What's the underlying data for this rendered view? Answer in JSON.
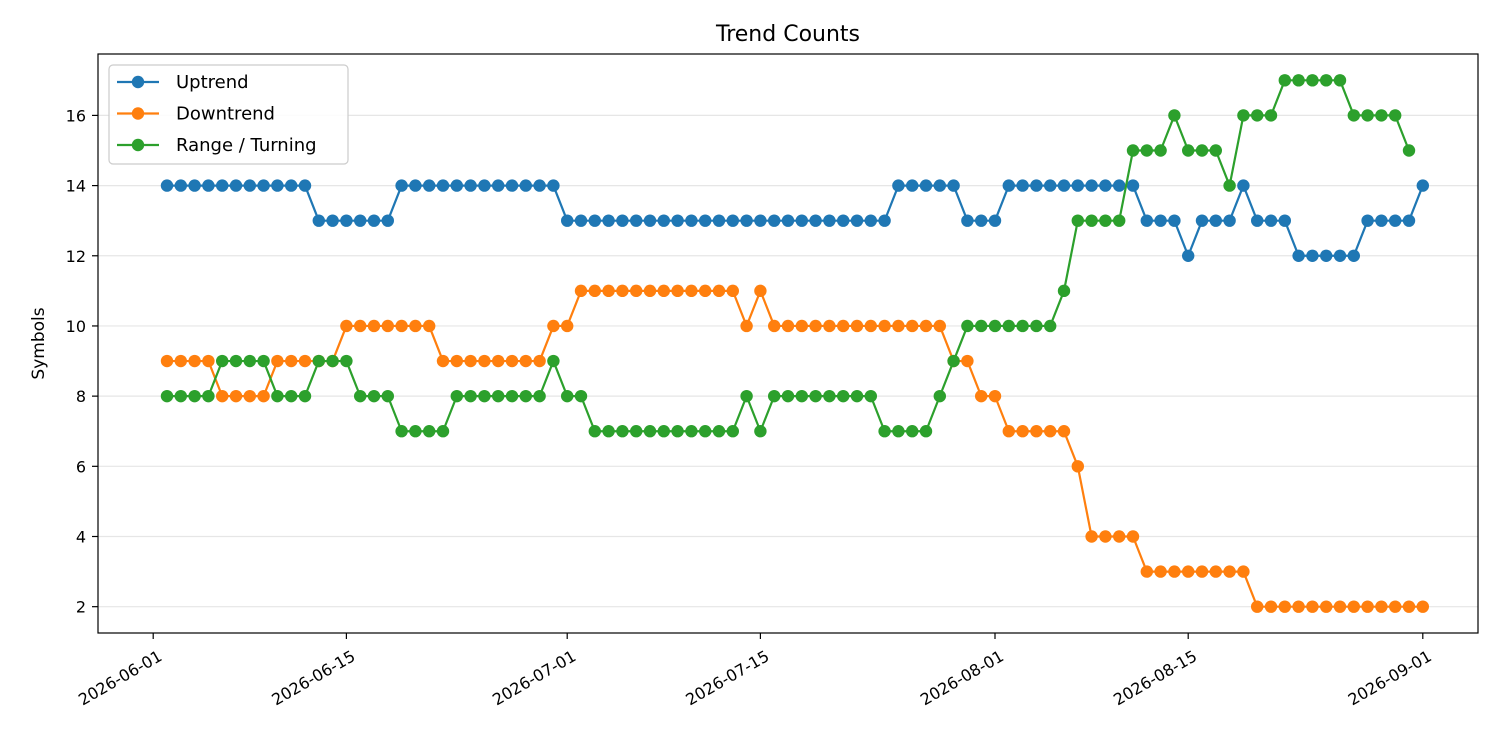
{
  "chart_data": {
    "type": "line",
    "title": "Trend Counts",
    "xlabel": "",
    "ylabel": "Symbols",
    "x_start": "2026-06-02",
    "x_end": "2026-08-31",
    "xlim": [
      "2026-05-28",
      "2026-09-05"
    ],
    "ylim": [
      1.25,
      17.75
    ],
    "x_ticks": [
      "2026-06-01",
      "2026-06-15",
      "2026-07-01",
      "2026-07-15",
      "2026-08-01",
      "2026-08-15",
      "2026-09-01"
    ],
    "y_ticks": [
      2,
      4,
      6,
      8,
      10,
      12,
      14,
      16
    ],
    "grid": "horizontal",
    "legend_position": "top-left",
    "series": [
      {
        "name": "Uptrend",
        "color": "#1f77b4",
        "values": [
          14,
          14,
          14,
          14,
          14,
          14,
          14,
          14,
          14,
          14,
          14,
          13,
          13,
          13,
          13,
          13,
          13,
          14,
          14,
          14,
          14,
          14,
          14,
          14,
          14,
          14,
          14,
          14,
          14,
          13,
          13,
          13,
          13,
          13,
          13,
          13,
          13,
          13,
          13,
          13,
          13,
          13,
          13,
          13,
          13,
          13,
          13,
          13,
          13,
          13,
          13,
          13,
          13,
          14,
          14,
          14,
          14,
          14,
          13,
          13,
          13,
          14,
          14,
          14,
          14,
          14,
          14,
          14,
          14,
          14,
          14,
          13,
          13,
          13,
          12,
          13,
          13,
          13,
          14,
          13,
          13,
          13,
          12,
          12,
          12,
          12,
          12,
          13,
          13,
          13,
          13,
          14
        ]
      },
      {
        "name": "Downtrend",
        "color": "#ff7f0e",
        "values": [
          9,
          9,
          9,
          9,
          8,
          8,
          8,
          8,
          9,
          9,
          9,
          9,
          9,
          10,
          10,
          10,
          10,
          10,
          10,
          10,
          9,
          9,
          9,
          9,
          9,
          9,
          9,
          9,
          10,
          10,
          11,
          11,
          11,
          11,
          11,
          11,
          11,
          11,
          11,
          11,
          11,
          11,
          10,
          11,
          10,
          10,
          10,
          10,
          10,
          10,
          10,
          10,
          10,
          10,
          10,
          10,
          10,
          9,
          9,
          8,
          8,
          7,
          7,
          7,
          7,
          7,
          6,
          4,
          4,
          4,
          4,
          3,
          3,
          3,
          3,
          3,
          3,
          3,
          3,
          2,
          2,
          2,
          2,
          2,
          2,
          2,
          2,
          2,
          2,
          2,
          2,
          2
        ]
      },
      {
        "name": "Range / Turning",
        "color": "#2ca02c",
        "values": [
          8,
          8,
          8,
          8,
          9,
          9,
          9,
          9,
          8,
          8,
          8,
          9,
          9,
          9,
          8,
          8,
          8,
          7,
          7,
          7,
          7,
          8,
          8,
          8,
          8,
          8,
          8,
          8,
          9,
          8,
          8,
          7,
          7,
          7,
          7,
          7,
          7,
          7,
          7,
          7,
          7,
          7,
          8,
          7,
          8,
          8,
          8,
          8,
          8,
          8,
          8,
          8,
          7,
          7,
          7,
          7,
          8,
          9,
          10,
          10,
          10,
          10,
          10,
          10,
          10,
          11,
          13,
          13,
          13,
          13,
          15,
          15,
          15,
          16,
          15,
          15,
          15,
          14,
          16,
          16,
          16,
          17,
          17,
          17,
          17,
          17,
          16,
          16,
          16,
          16,
          15
        ]
      }
    ]
  }
}
